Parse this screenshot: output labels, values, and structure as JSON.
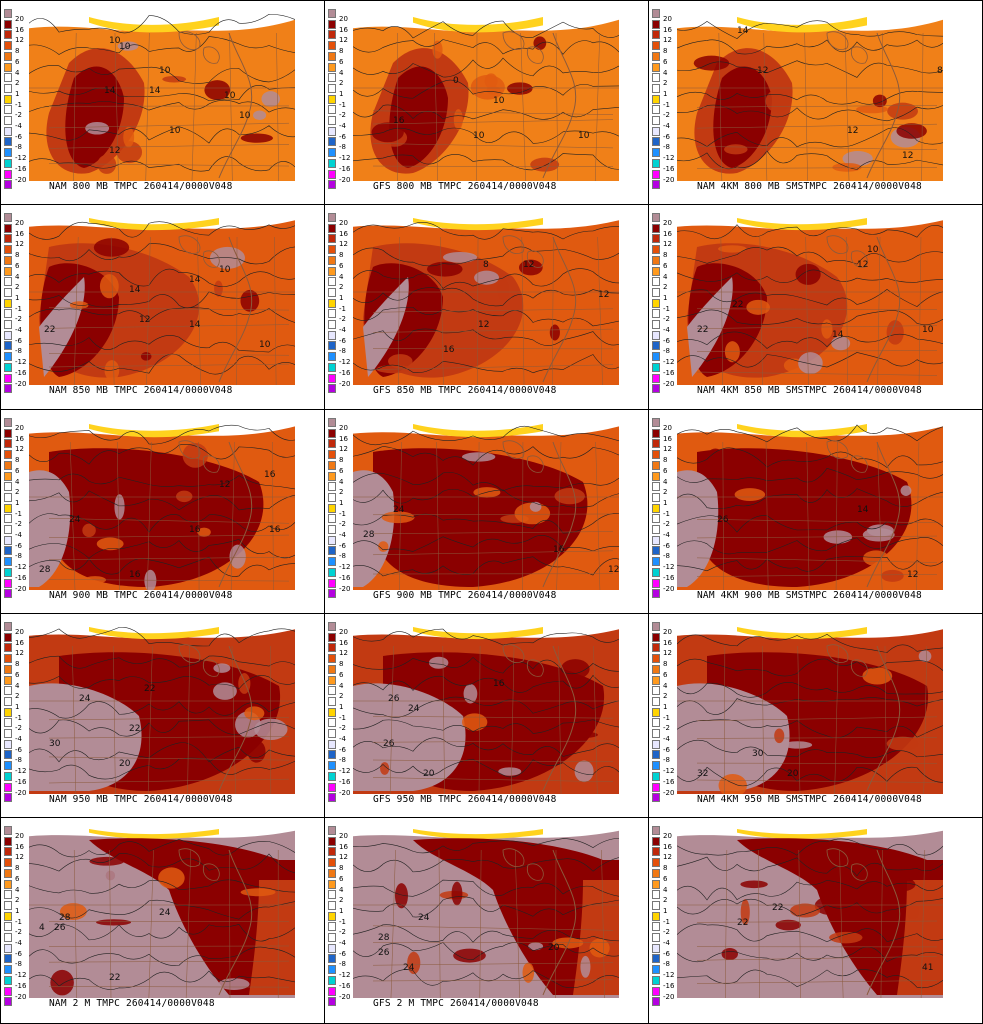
{
  "legend": {
    "levels": [
      "20",
      "16",
      "12",
      "8",
      "6",
      "4",
      "2",
      "1",
      "-1",
      "-2",
      "-4",
      "-6",
      "-8",
      "-12",
      "-16",
      "-20"
    ],
    "colors": [
      "#b28c96",
      "#8b0000",
      "#c0280a",
      "#e4500a",
      "#f07814",
      "#ff9a1e",
      "#ffffff",
      "#ffffff",
      "#ffd400",
      "#ffffff",
      "#ffffff",
      "#e8e8ff",
      "#1e64c8",
      "#1e90ff",
      "#00d2d2",
      "#ff00ff",
      "#b400e0"
    ]
  },
  "palette": {
    "vhot": "#b28c96",
    "hot": "#8b0000",
    "warm3": "#c23a12",
    "warm2": "#e05a10",
    "warm1": "#f08018",
    "mild": "#ffd21e",
    "cold": "#ffffff",
    "line": "#8b5a3c"
  },
  "panels": [
    {
      "caption": "NAM 800 MB TMPC 260414/0000V048",
      "level": 800,
      "labels": [
        [
          "10",
          80,
          40
        ],
        [
          "10",
          90,
          46
        ],
        [
          "10",
          130,
          70
        ],
        [
          "14",
          75,
          90
        ],
        [
          "14",
          120,
          90
        ],
        [
          "10",
          195,
          95
        ],
        [
          "10",
          210,
          115
        ],
        [
          "10",
          140,
          130
        ],
        [
          "12",
          80,
          150
        ]
      ]
    },
    {
      "caption": "GFS 800 MB TMPC 260414/0000V048",
      "level": 800,
      "labels": [
        [
          "10",
          140,
          100
        ],
        [
          "10",
          120,
          135
        ],
        [
          "16",
          40,
          120
        ],
        [
          "10",
          225,
          135
        ],
        [
          "0",
          100,
          80
        ]
      ]
    },
    {
      "caption": "NAM 4KM 800 MB SMSTMPC 260414/0000V048",
      "level": 800,
      "labels": [
        [
          "14",
          60,
          30
        ],
        [
          "12",
          80,
          70
        ],
        [
          "12",
          170,
          130
        ],
        [
          "12",
          225,
          155
        ],
        [
          "8",
          260,
          70
        ]
      ]
    },
    {
      "caption": "NAM 850 MB TMPC 260414/0000V048",
      "level": 850,
      "labels": [
        [
          "14",
          100,
          85
        ],
        [
          "14",
          160,
          75
        ],
        [
          "14",
          160,
          120
        ],
        [
          "10",
          190,
          65
        ],
        [
          "10",
          230,
          140
        ],
        [
          "22",
          15,
          125
        ],
        [
          "12",
          110,
          115
        ]
      ]
    },
    {
      "caption": "GFS 850 MB TMPC 260414/0000V048",
      "level": 850,
      "labels": [
        [
          "12",
          170,
          60
        ],
        [
          "12",
          245,
          90
        ],
        [
          "12",
          125,
          120
        ],
        [
          "16",
          90,
          145
        ],
        [
          "8",
          130,
          60
        ]
      ]
    },
    {
      "caption": "NAM 4KM 850 MB SMSTMPC 260414/0000V048",
      "level": 850,
      "labels": [
        [
          "22",
          20,
          125
        ],
        [
          "12",
          180,
          60
        ],
        [
          "10",
          190,
          45
        ],
        [
          "14",
          155,
          130
        ],
        [
          "10",
          245,
          125
        ],
        [
          "22",
          55,
          100
        ]
      ]
    },
    {
      "caption": "NAM 900 MB TMPC 260414/0000V048",
      "level": 900,
      "labels": [
        [
          "24",
          40,
          110
        ],
        [
          "28",
          10,
          160
        ],
        [
          "16",
          100,
          165
        ],
        [
          "16",
          160,
          120
        ],
        [
          "16",
          235,
          65
        ],
        [
          "12",
          190,
          75
        ],
        [
          "16",
          240,
          120
        ]
      ]
    },
    {
      "caption": "GFS 900 MB TMPC 260414/0000V048",
      "level": 900,
      "labels": [
        [
          "24",
          40,
          100
        ],
        [
          "28",
          10,
          125
        ],
        [
          "16",
          200,
          140
        ],
        [
          "12",
          255,
          160
        ]
      ]
    },
    {
      "caption": "NAM 4KM 900 MB SMSTMPC 260414/0000V048",
      "level": 900,
      "labels": [
        [
          "26",
          40,
          110
        ],
        [
          "14",
          180,
          100
        ],
        [
          "12",
          230,
          165
        ]
      ]
    },
    {
      "caption": "NAM 950 MB TMPC 260414/0000V048",
      "level": 950,
      "labels": [
        [
          "24",
          50,
          85
        ],
        [
          "22",
          100,
          115
        ],
        [
          "22",
          115,
          75
        ],
        [
          "30",
          20,
          130
        ],
        [
          "20",
          90,
          150
        ]
      ]
    },
    {
      "caption": "GFS 950 MB TMPC 260414/0000V048",
      "level": 950,
      "labels": [
        [
          "26",
          35,
          85
        ],
        [
          "24",
          55,
          95
        ],
        [
          "26",
          30,
          130
        ],
        [
          "20",
          70,
          160
        ],
        [
          "16",
          140,
          70
        ]
      ]
    },
    {
      "caption": "NAM 4KM 950 MB SMSTMPC 260414/0000V048",
      "level": 950,
      "labels": [
        [
          "32",
          20,
          160
        ],
        [
          "30",
          75,
          140
        ],
        [
          "20",
          110,
          160
        ]
      ]
    },
    {
      "caption": "NAM 2 M TMPC 260414/0000V048",
      "level": 2,
      "labels": [
        [
          "28",
          30,
          100
        ],
        [
          "26",
          25,
          110
        ],
        [
          "24",
          130,
          95
        ],
        [
          "22",
          80,
          160
        ],
        [
          "4",
          10,
          110
        ]
      ]
    },
    {
      "caption": "GFS 2 M TMPC 260414/0000V048",
      "level": 2,
      "labels": [
        [
          "24",
          65,
          100
        ],
        [
          "28",
          25,
          120
        ],
        [
          "26",
          25,
          135
        ],
        [
          "24",
          50,
          150
        ],
        [
          "20",
          195,
          130
        ]
      ]
    },
    {
      "caption": "",
      "level": 2,
      "labels": [
        [
          "22",
          60,
          105
        ],
        [
          "22",
          95,
          90
        ],
        [
          "41",
          245,
          150
        ]
      ]
    }
  ]
}
